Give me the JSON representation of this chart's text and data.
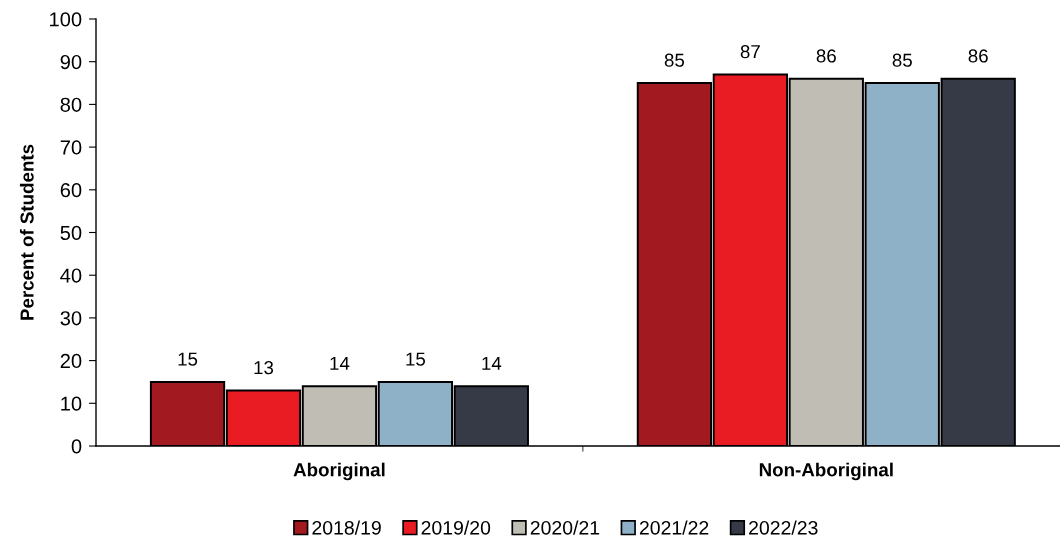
{
  "chart_data": {
    "type": "bar",
    "ylabel": "Percent of Students",
    "categories": [
      "Aboriginal",
      "Non-Aboriginal"
    ],
    "series": [
      {
        "name": "2018/19",
        "color": "#a2191f",
        "values": [
          15,
          85
        ]
      },
      {
        "name": "2019/20",
        "color": "#e91c24",
        "values": [
          13,
          87
        ]
      },
      {
        "name": "2020/21",
        "color": "#c0bdb5",
        "values": [
          14,
          86
        ]
      },
      {
        "name": "2021/22",
        "color": "#8fb1c8",
        "values": [
          15,
          85
        ]
      },
      {
        "name": "2022/23",
        "color": "#363a47",
        "values": [
          14,
          86
        ]
      }
    ],
    "ylim": [
      0,
      100
    ],
    "yticks": [
      0,
      10,
      20,
      30,
      40,
      50,
      60,
      70,
      80,
      90,
      100
    ],
    "data_labels": true,
    "legend": "bottom",
    "grid": false
  }
}
